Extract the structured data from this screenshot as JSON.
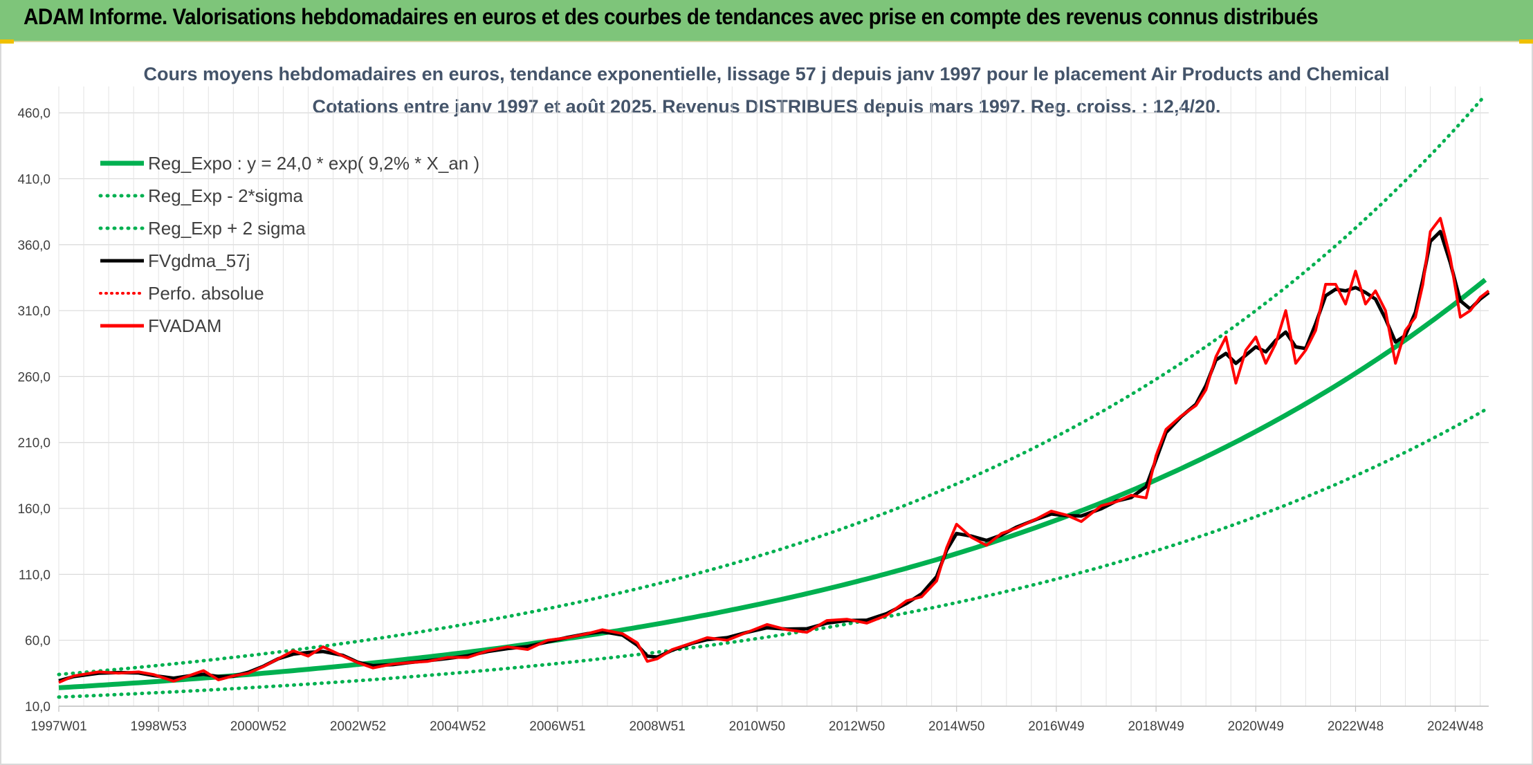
{
  "header": {
    "title": "ADAM Informe. Valorisations hebdomadaires en euros et des courbes de tendances avec prise en compte des revenus connus distribués"
  },
  "chart_data": {
    "type": "line",
    "title_line1": "Cours moyens hebdomadaires en euros, tendance exponentielle, lissage 57 j depuis janv 1997 pour le placement Air Products and Chemical",
    "title_line2": "Cotations entre janv 1997 et août 2025. Revenus DISTRIBUES depuis mars 1997. Reg. croiss. : 12,4/20.",
    "ylim": [
      10,
      480
    ],
    "yticks": [
      "10,0",
      "60,0",
      "110,0",
      "160,0",
      "210,0",
      "260,0",
      "310,0",
      "360,0",
      "410,0",
      "460,0"
    ],
    "xlim": [
      1997.0,
      2025.67
    ],
    "xticks": [
      "1997W01",
      "1998W53",
      "2000W52",
      "2002W52",
      "2004W52",
      "2006W51",
      "2008W51",
      "2010W50",
      "2012W50",
      "2014W50",
      "2016W49",
      "2018W49",
      "2020W49",
      "2022W48",
      "2024W48"
    ],
    "grid": true,
    "legend_position": "top-left",
    "regression": {
      "a": 24.0,
      "b": 0.092,
      "sigma_factor": 1.42
    },
    "series": [
      {
        "name": "Reg_Expo : y = 24,0 * exp( 9,2% *  X_an )",
        "color": "#00b050",
        "style": "solid"
      },
      {
        "name": "Reg_Exp - 2*sigma",
        "color": "#00b050",
        "style": "dotted"
      },
      {
        "name": "Reg_Exp + 2 sigma",
        "color": "#00b050",
        "style": "dotted"
      },
      {
        "name": "FVgdma_57j",
        "color": "#000000",
        "style": "solid"
      },
      {
        "name": "Perfo. absolue",
        "color": "#ff0000",
        "style": "dotted"
      },
      {
        "name": "FVADAM",
        "color": "#ff0000",
        "style": "solid"
      }
    ],
    "fvadam": {
      "x": [
        1997.0,
        1997.3,
        1997.8,
        1998.2,
        1998.6,
        1998.9,
        1999.3,
        1999.6,
        1999.9,
        2000.2,
        2000.5,
        2000.8,
        2001.1,
        2001.4,
        2001.7,
        2002.0,
        2002.3,
        2002.7,
        2003.0,
        2003.3,
        2003.7,
        2004.0,
        2004.4,
        2004.8,
        2005.2,
        2005.6,
        2006.0,
        2006.4,
        2006.8,
        2007.2,
        2007.6,
        2007.9,
        2008.3,
        2008.6,
        2008.8,
        2009.0,
        2009.3,
        2009.7,
        2010.0,
        2010.4,
        2010.8,
        2011.2,
        2011.6,
        2012.0,
        2012.4,
        2012.8,
        2013.2,
        2013.6,
        2014.0,
        2014.3,
        2014.6,
        2014.8,
        2015.0,
        2015.3,
        2015.6,
        2015.9,
        2016.2,
        2016.6,
        2016.9,
        2017.2,
        2017.5,
        2017.9,
        2018.2,
        2018.5,
        2018.8,
        2019.0,
        2019.2,
        2019.5,
        2019.8,
        2020.0,
        2020.2,
        2020.4,
        2020.6,
        2020.8,
        2021.0,
        2021.2,
        2021.4,
        2021.6,
        2021.8,
        2022.0,
        2022.2,
        2022.4,
        2022.6,
        2022.8,
        2023.0,
        2023.2,
        2023.4,
        2023.6,
        2023.8,
        2024.0,
        2024.2,
        2024.35,
        2024.5,
        2024.7,
        2024.9,
        2025.1,
        2025.3,
        2025.5,
        2025.67
      ],
      "y": [
        28,
        33,
        36,
        35,
        36,
        34,
        29,
        33,
        37,
        30,
        33,
        35,
        40,
        46,
        52,
        48,
        55,
        48,
        43,
        39,
        42,
        43,
        44,
        47,
        47,
        52,
        55,
        53,
        60,
        62,
        65,
        68,
        65,
        58,
        44,
        46,
        53,
        58,
        62,
        60,
        66,
        72,
        68,
        66,
        75,
        76,
        73,
        79,
        90,
        93,
        105,
        130,
        148,
        138,
        132,
        141,
        145,
        152,
        158,
        155,
        150,
        162,
        165,
        170,
        168,
        200,
        220,
        230,
        238,
        250,
        275,
        290,
        255,
        280,
        290,
        270,
        285,
        310,
        270,
        280,
        295,
        330,
        330,
        315,
        340,
        315,
        325,
        310,
        270,
        295,
        305,
        330,
        370,
        380,
        350,
        305,
        310,
        320,
        325
      ]
    }
  }
}
